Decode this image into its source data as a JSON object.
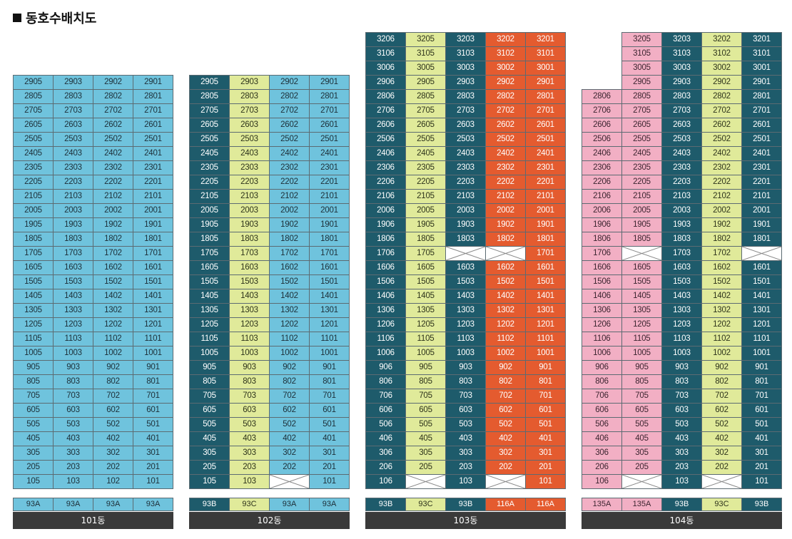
{
  "title": "동호수배치도",
  "colors": {
    "teal": "#1e5b6b",
    "sky": "#6fc3dd",
    "lime": "#e0ea9a",
    "orange": "#e45b2f",
    "pink": "#f2afc4",
    "label_bg": "#3a3a3a"
  },
  "buildings": [
    {
      "name": "101동",
      "units": [
        "05",
        "03",
        "02",
        "01"
      ],
      "types": [
        "93A",
        "93A",
        "93A",
        "93A"
      ],
      "colors": [
        "sky",
        "sky",
        "sky",
        "sky"
      ],
      "floors": [
        29,
        28,
        27,
        26,
        25,
        24,
        23,
        22,
        21,
        20,
        19,
        18,
        17,
        16,
        15,
        14,
        13,
        12,
        11,
        10,
        9,
        8,
        7,
        6,
        5,
        4,
        3,
        2,
        1
      ],
      "missing": []
    },
    {
      "name": "102동",
      "units": [
        "05",
        "03",
        "02",
        "01"
      ],
      "types": [
        "93B",
        "93C",
        "93A",
        "93A"
      ],
      "colors": [
        "teal",
        "lime",
        "sky",
        "sky"
      ],
      "floors": [
        29,
        28,
        27,
        26,
        25,
        24,
        23,
        22,
        21,
        20,
        19,
        18,
        17,
        16,
        15,
        14,
        13,
        12,
        11,
        10,
        9,
        8,
        7,
        6,
        5,
        4,
        3,
        2,
        1
      ],
      "missing": [
        "102"
      ]
    },
    {
      "name": "103동",
      "units": [
        "06",
        "05",
        "03",
        "02",
        "01"
      ],
      "types": [
        "93B",
        "93C",
        "93B",
        "116A",
        "116A"
      ],
      "colors": [
        "teal",
        "lime",
        "teal",
        "orange",
        "orange"
      ],
      "floors": [
        32,
        31,
        30,
        29,
        28,
        27,
        26,
        25,
        24,
        23,
        22,
        21,
        20,
        19,
        18,
        17,
        16,
        15,
        14,
        13,
        12,
        11,
        10,
        9,
        8,
        7,
        6,
        5,
        4,
        3,
        2,
        1
      ],
      "missing": [
        "1703",
        "1702",
        "105",
        "102"
      ],
      "color_overrides": {
        "1603": "teal",
        "1403": "teal",
        "1303": "teal",
        "1203": "teal",
        "1103": "teal",
        "1003": "teal"
      }
    },
    {
      "name": "104동",
      "units": [
        "06",
        "05",
        "03",
        "02",
        "01"
      ],
      "types": [
        "135A",
        "135A",
        "93B",
        "93C",
        "93B"
      ],
      "colors": [
        "pink",
        "pink",
        "teal",
        "lime",
        "teal"
      ],
      "floors": [
        32,
        31,
        30,
        29,
        28,
        27,
        26,
        25,
        24,
        23,
        22,
        21,
        20,
        19,
        18,
        17,
        16,
        15,
        14,
        13,
        12,
        11,
        10,
        9,
        8,
        7,
        6,
        5,
        4,
        3,
        2,
        1
      ],
      "missing": [
        "1705",
        "1701",
        "105",
        "102"
      ],
      "min_floor": {
        "06": 1,
        "05": 1,
        "03": 1,
        "02": 1,
        "01": 1
      },
      "max_floor": {
        "06": 28,
        "05": 32,
        "03": 32,
        "02": 32,
        "01": 32
      }
    }
  ]
}
